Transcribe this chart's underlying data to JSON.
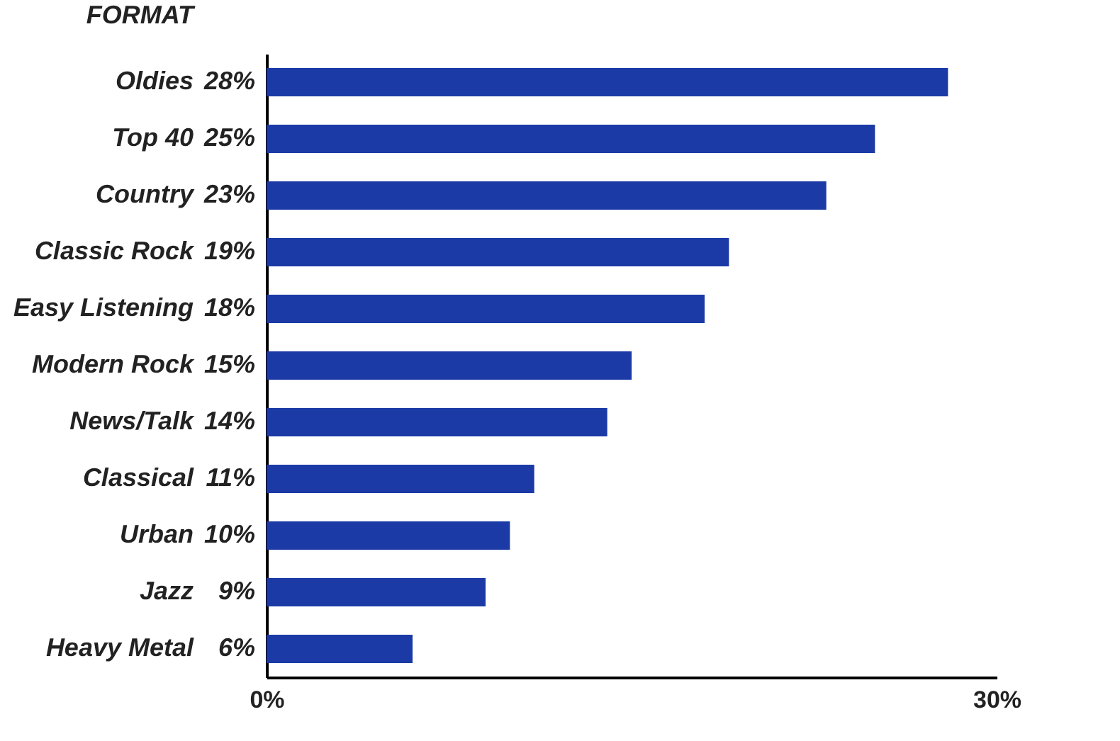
{
  "chart_data": {
    "type": "bar",
    "orientation": "horizontal",
    "ylabel": "FORMAT",
    "categories": [
      "Oldies",
      "Top 40",
      "Country",
      "Classic Rock",
      "Easy Listening",
      "Modern Rock",
      "News/Talk",
      "Classical",
      "Urban",
      "Jazz",
      "Heavy Metal"
    ],
    "values": [
      28,
      25,
      23,
      19,
      18,
      15,
      14,
      11,
      10,
      9,
      6
    ],
    "value_labels": [
      "28%",
      "25%",
      "23%",
      "19%",
      "18%",
      "15%",
      "14%",
      "11%",
      "10%",
      "9%",
      "6%"
    ],
    "color": "#1b3aa6",
    "xlim": [
      0,
      30
    ],
    "xticks": [
      {
        "value": 0,
        "label": "0%"
      },
      {
        "value": 30,
        "label": "30%"
      }
    ],
    "grid": false
  }
}
